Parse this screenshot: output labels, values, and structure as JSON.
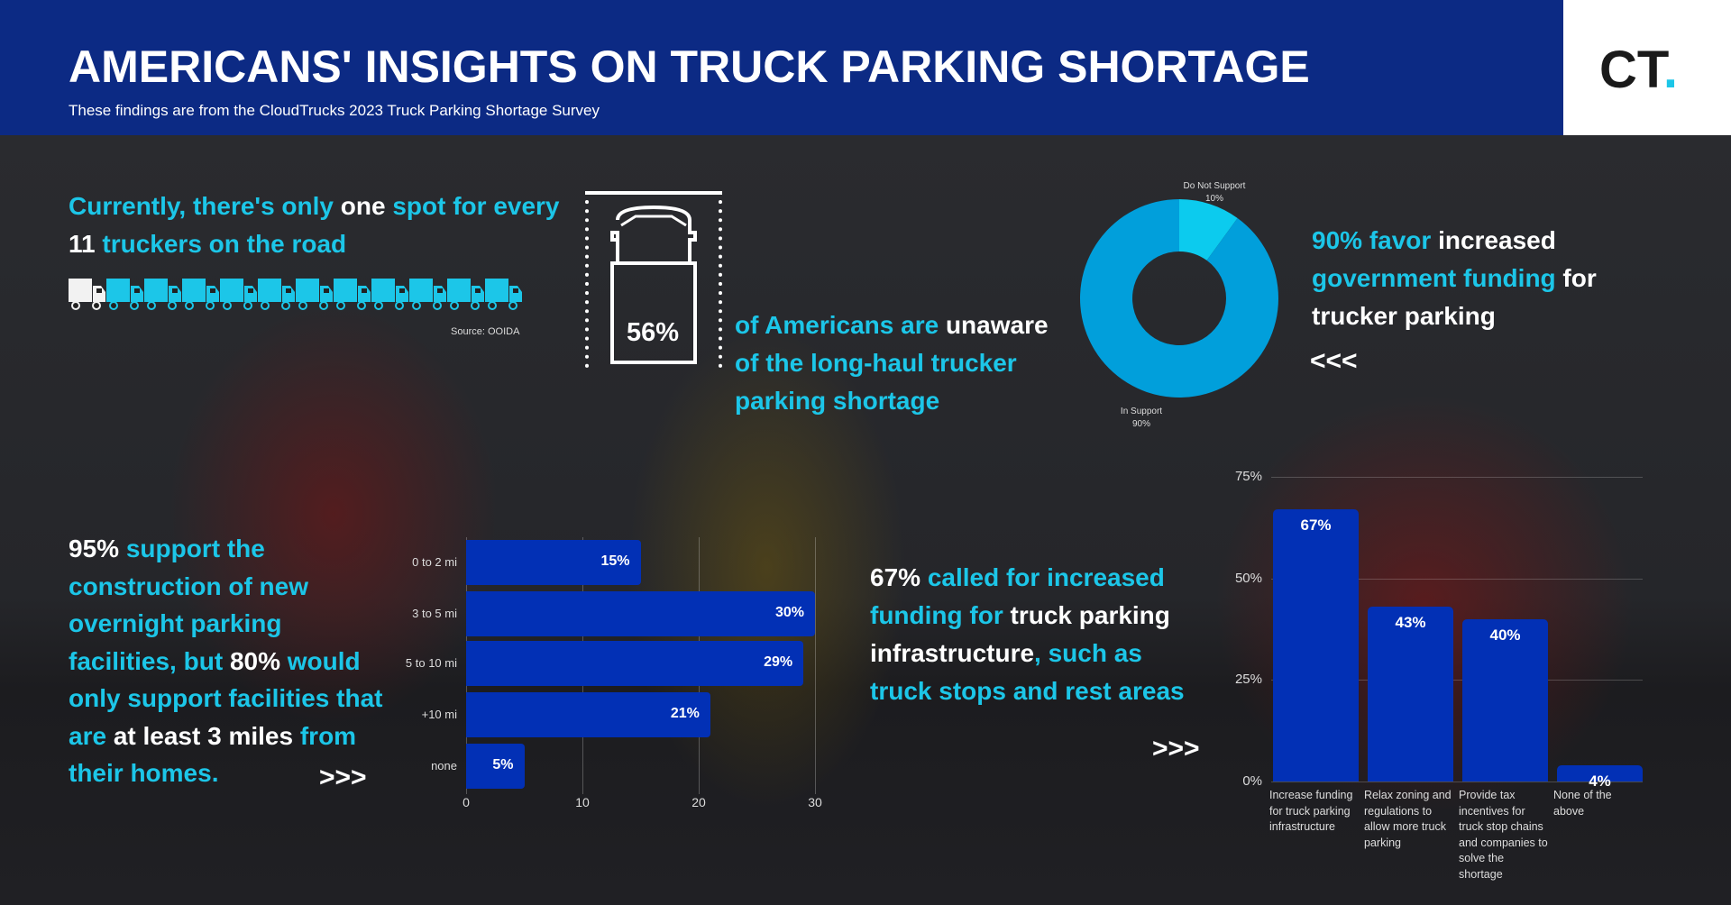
{
  "header": {
    "title": "AMERICANS' INSIGHTS ON TRUCK PARKING SHORTAGE",
    "subtitle": "These findings are from the CloudTrucks 2023 Truck Parking Shortage Survey",
    "logo_text": "CT",
    "logo_dot": "."
  },
  "stat1": {
    "a": "Currently, there's only ",
    "b": "one",
    "c": " spot for every",
    "d": "11",
    "e": " truckers on the road",
    "source": "Source: OOIDA",
    "trucks_total": 12,
    "trucks_highlighted": 1
  },
  "stat2": {
    "value": "56%",
    "a": "of Americans are ",
    "b": "unaware",
    "c": "of the long-haul trucker",
    "d": "parking shortage"
  },
  "stat3": {
    "a": "90% favor",
    "b": " increased",
    "c": "government funding",
    "d": " for",
    "e": "trucker parking",
    "arrows": "<<<"
  },
  "stat4": {
    "a": "95%",
    "b": " support the",
    "c": "construction of new",
    "d": "overnight parking",
    "e": "facilities, but ",
    "f": "80%",
    "g": " would",
    "h": "only support facilities that",
    "i": "are ",
    "j": "at least 3 miles",
    "k": " from",
    "l": "their homes.",
    "arrows": ">>>"
  },
  "stat5": {
    "a": "67%",
    "b": " called for increased",
    "c": "funding for",
    "d": " truck parking",
    "e": "infrastructure",
    "f": ", such as",
    "g": "truck stops and rest areas",
    "arrows": ">>>"
  },
  "colors": {
    "header": "#0c2a84",
    "accent": "#1cc6e8",
    "bar": "#0230b5",
    "donut_main": "#019fdb",
    "donut_minor": "#0ccbee"
  },
  "chart_data": [
    {
      "type": "pie",
      "variant": "donut",
      "slices": [
        {
          "label": "Do Not Support",
          "value": 10,
          "value_label": "10%"
        },
        {
          "label": "In Support",
          "value": 90,
          "value_label": "90%"
        }
      ]
    },
    {
      "type": "bar",
      "orientation": "horizontal",
      "categories": [
        "0 to 2 mi",
        "3 to 5 mi",
        "5 to 10 mi",
        "+10 mi",
        "none"
      ],
      "values": [
        15,
        30,
        29,
        21,
        5
      ],
      "data_labels": [
        "15%",
        "30%",
        "29%",
        "21%",
        "5%"
      ],
      "xlim": [
        0,
        30
      ],
      "xticks": [
        "0",
        "10",
        "20",
        "30"
      ],
      "grid": true
    },
    {
      "type": "bar",
      "orientation": "vertical",
      "categories": [
        "Increase funding for truck parking infrastructure",
        "Relax zoning and regulations to allow more truck parking",
        "Provide tax incentives for truck stop chains and companies to solve the shortage",
        "None of the above"
      ],
      "values": [
        67,
        43,
        40,
        4
      ],
      "data_labels": [
        "67%",
        "43%",
        "40%",
        "4%"
      ],
      "ylim": [
        0,
        75
      ],
      "yticks": [
        "0%",
        "25%",
        "50%",
        "75%"
      ],
      "grid": true
    }
  ]
}
